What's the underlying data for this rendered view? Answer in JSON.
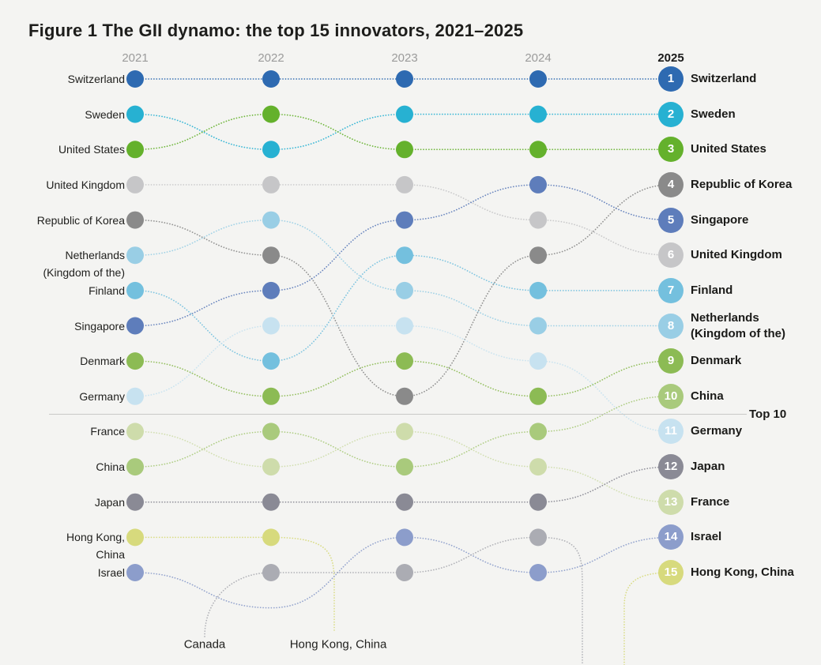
{
  "title": "Figure 1 The GII dynamo: the top 15 innovators, 2021–2025",
  "top10_label": "Top 10",
  "chart_data": {
    "type": "bump",
    "description": "Rank trajectories of the top 15 GII innovators, 2021–2025; ranks greater than 15 fall below the visible chart area",
    "years": [
      "2021",
      "2022",
      "2023",
      "2024",
      "2025"
    ],
    "legend_position": "labels at both sides; 2025 ranks shown in numbered badges",
    "series": [
      {
        "name": "Switzerland",
        "color": "#2e6ab1",
        "ranks": [
          1,
          1,
          1,
          1,
          1
        ]
      },
      {
        "name": "Sweden",
        "color": "#27b1d2",
        "ranks": [
          2,
          3,
          2,
          2,
          2
        ]
      },
      {
        "name": "United States",
        "color": "#64b12c",
        "ranks": [
          3,
          2,
          3,
          3,
          3
        ]
      },
      {
        "name": "United Kingdom",
        "color": "#c6c6c8",
        "ranks": [
          4,
          4,
          4,
          5,
          6
        ]
      },
      {
        "name": "Republic of Korea",
        "color": "#8a8a8a",
        "ranks": [
          5,
          6,
          10,
          6,
          4
        ]
      },
      {
        "name": "Netherlands (Kingdom of the)",
        "color": "#99cee5",
        "ranks": [
          6,
          5,
          7,
          8,
          8
        ],
        "left_label": "Netherlands\n(Kingdom of the)",
        "right_label": "Netherlands\n(Kingdom of the)"
      },
      {
        "name": "Finland",
        "color": "#74c0de",
        "ranks": [
          7,
          9,
          6,
          7,
          7
        ]
      },
      {
        "name": "Singapore",
        "color": "#5e7dbb",
        "ranks": [
          8,
          7,
          5,
          4,
          5
        ]
      },
      {
        "name": "Denmark",
        "color": "#8cbb54",
        "ranks": [
          9,
          10,
          9,
          10,
          9
        ]
      },
      {
        "name": "Germany",
        "color": "#c7e2f0",
        "ranks": [
          10,
          8,
          8,
          9,
          11
        ]
      },
      {
        "name": "France",
        "color": "#cedcab",
        "ranks": [
          11,
          12,
          11,
          12,
          13
        ]
      },
      {
        "name": "China",
        "color": "#a9ca7c",
        "ranks": [
          12,
          11,
          12,
          11,
          10
        ]
      },
      {
        "name": "Japan",
        "color": "#8a8a95",
        "ranks": [
          13,
          13,
          13,
          13,
          12
        ]
      },
      {
        "name": "Hong Kong, China",
        "color": "#d7da7d",
        "ranks": [
          14,
          14,
          null,
          null,
          15
        ],
        "left_label": "Hong Kong,\nChina"
      },
      {
        "name": "Israel",
        "color": "#8c9dcb",
        "ranks": [
          15,
          16,
          14,
          15,
          14
        ]
      },
      {
        "name": "Canada",
        "color": "#abacb3",
        "ranks": [
          null,
          15,
          15,
          14,
          null
        ]
      }
    ],
    "offchart_labels": [
      {
        "text": "Canada",
        "x": 259,
        "y": 816
      },
      {
        "text": "Hong Kong, China",
        "x": 428,
        "y": 816
      }
    ]
  }
}
